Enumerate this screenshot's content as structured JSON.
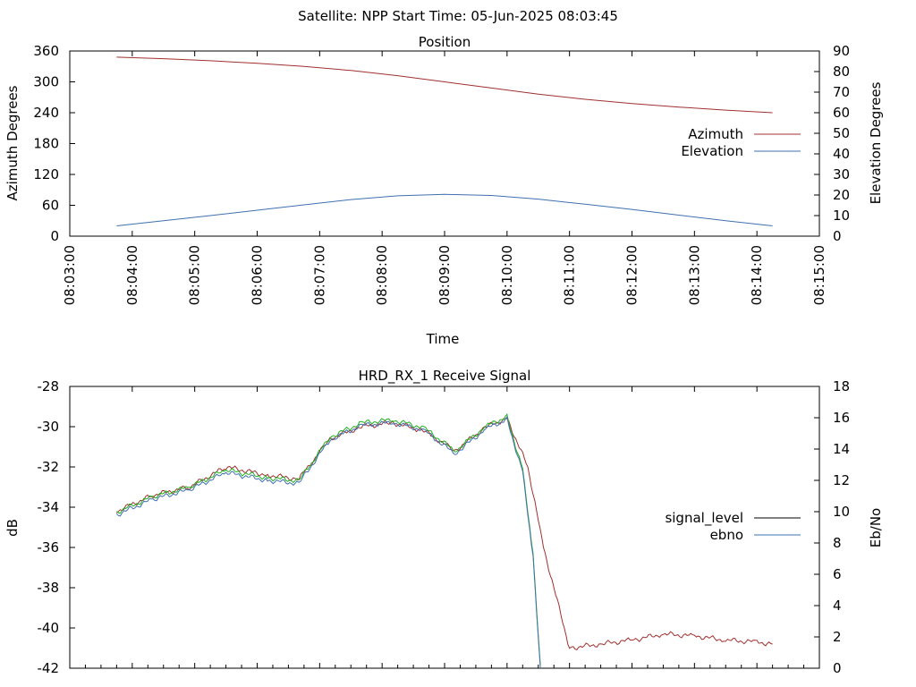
{
  "page_title": "Satellite: NPP    Start Time: 05-Jun-2025 08:03:45",
  "chart_data": [
    {
      "type": "line",
      "title": "Position",
      "xlabel": "Time",
      "ylabel": "Azimuth Degrees",
      "y2label": "Elevation Degrees",
      "x_ticks": [
        "08:03:00",
        "08:04:00",
        "08:05:00",
        "08:06:00",
        "08:07:00",
        "08:08:00",
        "08:09:00",
        "08:10:00",
        "08:11:00",
        "08:12:00",
        "08:13:00",
        "08:14:00",
        "08:15:00"
      ],
      "xlim": [
        "08:03:00",
        "08:15:00"
      ],
      "y_ticks": [
        "0",
        "60",
        "120",
        "180",
        "240",
        "300",
        "360"
      ],
      "ylim": [
        0,
        360
      ],
      "y2_ticks": [
        "0",
        "10",
        "20",
        "30",
        "40",
        "50",
        "60",
        "70",
        "80",
        "90"
      ],
      "y2lim": [
        0,
        90
      ],
      "legend_position": "right",
      "series": [
        {
          "name": "Azimuth",
          "axis": "y",
          "color": "#a03030",
          "x": [
            "08:03:45",
            "08:04:30",
            "08:05:15",
            "08:06:00",
            "08:06:45",
            "08:07:30",
            "08:08:15",
            "08:09:00",
            "08:09:45",
            "08:10:30",
            "08:11:15",
            "08:12:00",
            "08:12:45",
            "08:13:30",
            "08:14:15"
          ],
          "values": [
            348,
            345,
            341,
            336,
            330,
            322,
            312,
            300,
            288,
            276,
            266,
            258,
            251,
            245,
            240
          ]
        },
        {
          "name": "Elevation",
          "axis": "y2",
          "color": "#4070b0",
          "x": [
            "08:03:45",
            "08:04:30",
            "08:05:15",
            "08:06:00",
            "08:06:45",
            "08:07:30",
            "08:08:15",
            "08:09:00",
            "08:09:45",
            "08:10:30",
            "08:11:15",
            "08:12:00",
            "08:12:45",
            "08:13:30",
            "08:14:15"
          ],
          "values": [
            5,
            7.5,
            10,
            12.6,
            15.2,
            17.8,
            19.6,
            20.3,
            19.8,
            18.0,
            15.5,
            13.0,
            10.2,
            7.5,
            5
          ]
        }
      ]
    },
    {
      "type": "line",
      "title": "HRD_RX_1 Receive Signal",
      "xlabel": "",
      "ylabel": "dB",
      "y2label": "Eb/No",
      "xlim": [
        "08:03:00",
        "08:15:00"
      ],
      "y_ticks": [
        "-28",
        "-30",
        "-32",
        "-34",
        "-36",
        "-38",
        "-40",
        "-42"
      ],
      "ylim": [
        -42,
        -28
      ],
      "y2_ticks": [
        "0",
        "2",
        "4",
        "6",
        "8",
        "10",
        "12",
        "14",
        "16",
        "18"
      ],
      "y2lim": [
        0,
        18
      ],
      "legend_position": "right",
      "series": [
        {
          "name": "signal_level",
          "axis": "y",
          "color": "#a03030",
          "x": [
            "08:03:45",
            "08:04:20",
            "08:04:55",
            "08:05:30",
            "08:06:10",
            "08:06:40",
            "08:07:10",
            "08:07:40",
            "08:08:10",
            "08:08:40",
            "08:09:10",
            "08:09:40",
            "08:10:00",
            "08:10:20",
            "08:10:35",
            "08:11:00",
            "08:11:30",
            "08:12:00",
            "08:12:30",
            "08:13:00",
            "08:13:30",
            "08:14:00",
            "08:14:15"
          ],
          "values": [
            -34.2,
            -33.4,
            -33.0,
            -32.0,
            -32.4,
            -32.6,
            -30.6,
            -30.0,
            -29.8,
            -30.2,
            -31.2,
            -30.0,
            -29.6,
            -32.0,
            -36.0,
            -41.0,
            -40.8,
            -40.6,
            -40.3,
            -40.4,
            -40.6,
            -40.7,
            -40.8
          ]
        },
        {
          "name": "ebno",
          "axis": "y2",
          "color": "#4070b0",
          "color_alt": "#20b020",
          "x": [
            "08:03:45",
            "08:04:20",
            "08:04:55",
            "08:05:30",
            "08:06:10",
            "08:06:40",
            "08:07:10",
            "08:07:40",
            "08:08:10",
            "08:08:40",
            "08:09:10",
            "08:09:40",
            "08:10:00",
            "08:10:15",
            "08:10:25",
            "08:10:32"
          ],
          "values": [
            9.8,
            10.8,
            11.4,
            12.5,
            12.0,
            11.8,
            14.6,
            15.5,
            15.7,
            15.2,
            13.7,
            15.3,
            15.9,
            12.5,
            7.0,
            0
          ]
        }
      ]
    }
  ]
}
